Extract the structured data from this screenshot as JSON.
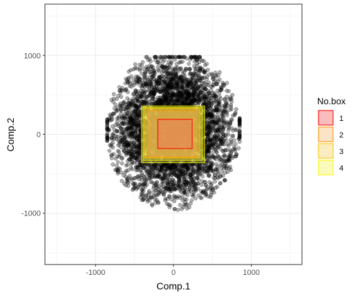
{
  "chart_data": {
    "type": "scatter",
    "xlabel": "Comp.1",
    "ylabel": "Comp.2",
    "xlim": [
      -1650,
      1650
    ],
    "ylim": [
      -1650,
      1650
    ],
    "xticks": [
      -1000,
      0,
      1000
    ],
    "yticks": [
      -1000,
      0,
      1000
    ],
    "xtick_labels": [
      "-1000",
      "0",
      "1000"
    ],
    "ytick_labels": [
      "-1000",
      "0",
      "1000"
    ],
    "grid": true,
    "theme": "bw",
    "points": {
      "color": "#000000",
      "alpha": 0.3,
      "count": 5000,
      "center": [
        0,
        50
      ],
      "x_range": [
        -850,
        850
      ],
      "y_range": [
        -1150,
        980
      ]
    },
    "legend": {
      "title": "No.box",
      "position": "right",
      "entries": [
        {
          "label": "1",
          "fill": "#ff9999",
          "stroke": "#ff0000"
        },
        {
          "label": "2",
          "fill": "#ffd8a8",
          "stroke": "#ff9900"
        },
        {
          "label": "3",
          "fill": "#ffeaa0",
          "stroke": "#ffcc00"
        },
        {
          "label": "4",
          "fill": "#ffff99",
          "stroke": "#ffff00"
        }
      ]
    },
    "boxes": [
      {
        "name": "4",
        "x": [
          -410,
          400
        ],
        "y": [
          -360,
          360
        ],
        "fill": "#ffff66",
        "stroke": "#e6e600"
      },
      {
        "name": "4",
        "x": [
          -390,
          370
        ],
        "y": [
          -330,
          340
        ],
        "fill": "#ffff66",
        "stroke": "#e6e600"
      },
      {
        "name": "3",
        "x": [
          -370,
          340
        ],
        "y": [
          -300,
          330
        ],
        "fill": "#ffcc33",
        "stroke": "#f2c200"
      },
      {
        "name": "2",
        "x": [
          -330,
          310
        ],
        "y": [
          -290,
          300
        ],
        "fill": "#ffaa55",
        "stroke": "#ff9900"
      },
      {
        "name": "1",
        "x": [
          -200,
          240
        ],
        "y": [
          -180,
          190
        ],
        "fill": "#ff6666",
        "stroke": "#ff0000"
      }
    ]
  }
}
